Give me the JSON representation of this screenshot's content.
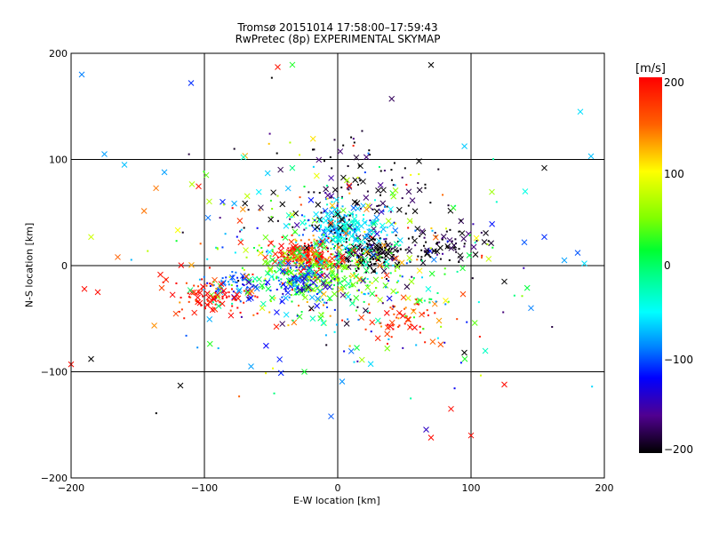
{
  "chart_data": {
    "type": "scatter",
    "title": "Tromsø 20151014 17:58:00–17:59:43",
    "subtitle": "RwPretec (8p) EXPERIMENTAL SKYMAP",
    "xlabel": "E-W location [km]",
    "ylabel": "N-S location [km]",
    "xlim": [
      -200,
      200
    ],
    "ylim": [
      -200,
      200
    ],
    "xticks": [
      "−200",
      "−100",
      "0",
      "100",
      "200"
    ],
    "yticks": [
      "−200",
      "−100",
      "0",
      "100",
      "200"
    ],
    "grid": true,
    "colorbar": {
      "label": "[m/s]",
      "range": [
        -200,
        200
      ],
      "ticks": [
        "200",
        "100",
        "0",
        "−100",
        "−200"
      ]
    },
    "clusters": [
      {
        "x": 25,
        "y": 12,
        "sx": 12,
        "sy": 7,
        "n": 160,
        "v": -200
      },
      {
        "x": 75,
        "y": 18,
        "sx": 15,
        "sy": 8,
        "n": 80,
        "v": -200
      },
      {
        "x": 5,
        "y": 35,
        "sx": 15,
        "sy": 10,
        "n": 200,
        "v": -60
      },
      {
        "x": -25,
        "y": 8,
        "sx": 12,
        "sy": 9,
        "n": 180,
        "v": 190
      },
      {
        "x": -15,
        "y": -10,
        "sx": 30,
        "sy": 15,
        "n": 250,
        "v": 30
      },
      {
        "x": -30,
        "y": -15,
        "sx": 8,
        "sy": 8,
        "n": 70,
        "v": -110
      },
      {
        "x": -75,
        "y": -20,
        "sx": 15,
        "sy": 8,
        "n": 60,
        "v": -100
      },
      {
        "x": -95,
        "y": -28,
        "sx": 20,
        "sy": 10,
        "n": 90,
        "v": 195
      },
      {
        "x": 50,
        "y": -50,
        "sx": 15,
        "sy": 10,
        "n": 60,
        "v": 170
      },
      {
        "x": 10,
        "y": 70,
        "sx": 30,
        "sy": 30,
        "n": 120,
        "v": -200
      },
      {
        "x": 0,
        "y": 0,
        "sx": 60,
        "sy": 50,
        "n": 450,
        "v": null
      }
    ],
    "outliers": [
      {
        "x": -192,
        "y": 180,
        "v": -90
      },
      {
        "x": -110,
        "y": 172,
        "v": -110
      },
      {
        "x": -45,
        "y": 187,
        "v": 190
      },
      {
        "x": 70,
        "y": 189,
        "v": -200
      },
      {
        "x": 182,
        "y": 145,
        "v": -60
      },
      {
        "x": 190,
        "y": 103,
        "v": -70
      },
      {
        "x": -175,
        "y": 105,
        "v": -80
      },
      {
        "x": -160,
        "y": 95,
        "v": -70
      },
      {
        "x": -130,
        "y": 88,
        "v": -80
      },
      {
        "x": -185,
        "y": 27,
        "v": 80
      },
      {
        "x": -165,
        "y": 8,
        "v": 150
      },
      {
        "x": -190,
        "y": -22,
        "v": 195
      },
      {
        "x": -180,
        "y": -25,
        "v": 195
      },
      {
        "x": -185,
        "y": -88,
        "v": -200
      },
      {
        "x": -118,
        "y": -113,
        "v": -200
      },
      {
        "x": -200,
        "y": -93,
        "v": 195
      },
      {
        "x": 170,
        "y": 5,
        "v": -80
      },
      {
        "x": 180,
        "y": 12,
        "v": -100
      },
      {
        "x": 185,
        "y": 2,
        "v": -60
      },
      {
        "x": 155,
        "y": 27,
        "v": -110
      },
      {
        "x": 140,
        "y": 22,
        "v": -100
      },
      {
        "x": 125,
        "y": -15,
        "v": -200
      },
      {
        "x": 145,
        "y": -40,
        "v": -90
      },
      {
        "x": 95,
        "y": -82,
        "v": -200
      },
      {
        "x": 85,
        "y": -135,
        "v": 195
      },
      {
        "x": 70,
        "y": -162,
        "v": 195
      },
      {
        "x": 100,
        "y": -160,
        "v": 195
      },
      {
        "x": 125,
        "y": -112,
        "v": 195
      },
      {
        "x": -5,
        "y": -142,
        "v": -100
      },
      {
        "x": 155,
        "y": 92,
        "v": -200
      },
      {
        "x": -65,
        "y": -95,
        "v": -80
      },
      {
        "x": -25,
        "y": -100,
        "v": 20
      }
    ]
  }
}
